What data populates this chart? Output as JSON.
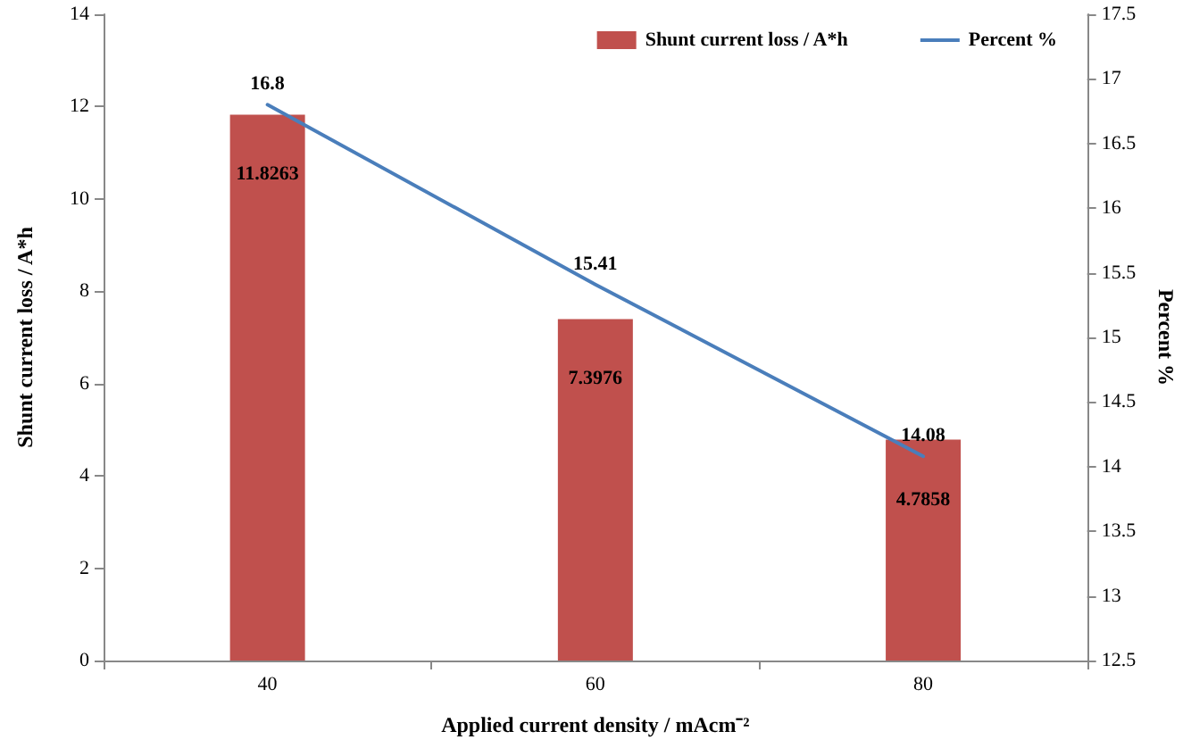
{
  "chart_data": {
    "type": "bar",
    "xlabel": "Applied current density / mAcm⁻²",
    "ylabel": "Shunt current loss / A*h",
    "y2label": "Percent %",
    "categories": [
      "40",
      "60",
      "80"
    ],
    "series": [
      {
        "name": "Shunt current loss / A*h",
        "color": "#c0504d",
        "values": [
          11.8263,
          7.3976,
          4.7858
        ]
      },
      {
        "name": "Percent %",
        "type": "line",
        "axis": "y2",
        "color": "#4a7ebb",
        "values": [
          16.8,
          15.41,
          14.08
        ]
      }
    ],
    "ylim": [
      0,
      14
    ],
    "yticks": [
      0,
      2,
      4,
      6,
      8,
      10,
      12,
      14
    ],
    "y2lim": [
      12.5,
      17.5
    ],
    "y2ticks": [
      12.5,
      13,
      13.5,
      14,
      14.5,
      15,
      15.5,
      16,
      16.5,
      17,
      17.5
    ],
    "data_labels": true,
    "legend": "top right",
    "grid": false,
    "marker": "none",
    "line_style": "solid"
  }
}
